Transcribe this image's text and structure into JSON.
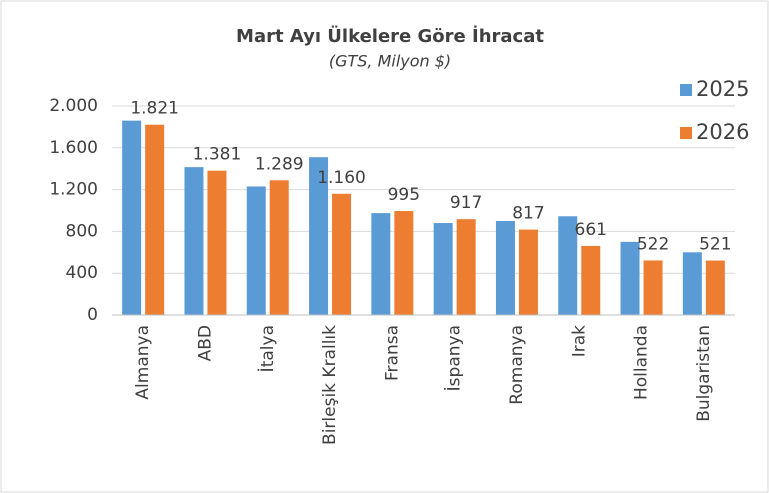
{
  "chart_data": {
    "type": "bar",
    "title": "Mart Ayı Ülkelere Göre İhracat",
    "subtitle": "(GTS, Milyon $)",
    "categories": [
      "Almanya",
      "ABD",
      "İtalya",
      "Birleşik Krallık",
      "Fransa",
      "İspanya",
      "Romanya",
      "Irak",
      "Hollanda",
      "Bulgaristan"
    ],
    "series": [
      {
        "name": "2025",
        "color": "#5b9bd5",
        "values": [
          1860,
          1415,
          1230,
          1510,
          975,
          880,
          900,
          945,
          700,
          600
        ]
      },
      {
        "name": "2026",
        "color": "#ed7d31",
        "values": [
          1821,
          1381,
          1289,
          1160,
          995,
          917,
          817,
          661,
          522,
          521
        ],
        "value_labels": [
          "1.821",
          "1.381",
          "1.289",
          "1.160",
          "995",
          "917",
          "817",
          "661",
          "522",
          "521"
        ]
      }
    ],
    "ylim": [
      0,
      2000
    ],
    "yticks": [
      0,
      400,
      800,
      {
        "value": 1200,
        "label": "1.200"
      },
      {
        "value": 1600,
        "label": "1.600"
      },
      {
        "value": 2000,
        "label": "2.000"
      }
    ],
    "grid": true,
    "legend": "right"
  }
}
